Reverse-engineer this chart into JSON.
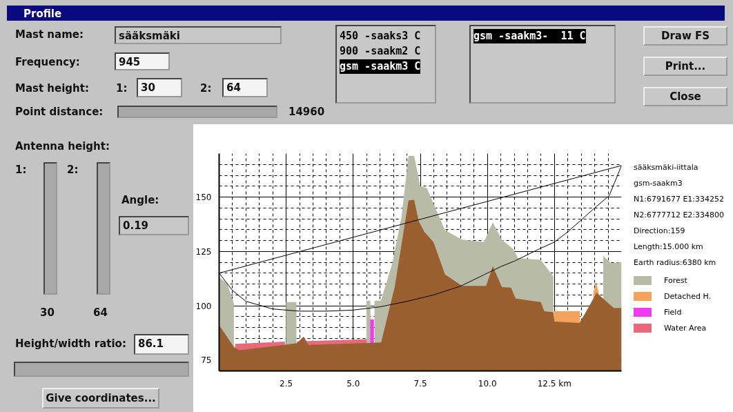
{
  "chart_data": {
    "type": "area",
    "title": "Profile",
    "xlim": [
      0,
      15
    ],
    "ylim": [
      70,
      170
    ],
    "xticks": [
      {
        "value": 2.5,
        "label": "2.5"
      },
      {
        "value": 5,
        "label": "5.0"
      },
      {
        "value": 7.5,
        "label": "7.5"
      },
      {
        "value": 10,
        "label": "10.0"
      },
      {
        "value": 12.5,
        "label": "12.5 km"
      }
    ],
    "yticks": [
      75,
      100,
      125,
      150
    ],
    "grid": true,
    "legend": "right",
    "series": [
      {
        "name": "Forest",
        "color": "#b8bca6",
        "x": [
          0,
          0.3,
          0.55,
          0.56,
          2.48,
          2.49,
          2.88,
          2.89,
          5.48,
          5.49,
          5.64,
          5.65,
          5.78,
          5.79,
          6.03,
          6.46,
          6.8,
          7.06,
          7.27,
          7.5,
          7.74,
          8.42,
          9.06,
          9.87,
          10.2,
          10.54,
          10.96,
          11.14,
          11.99,
          12.46,
          12.48,
          14.3,
          14.32,
          14.6,
          15
        ],
        "values": [
          113,
          110.2,
          101,
          null,
          null,
          101.7,
          101.7,
          null,
          null,
          102.3,
          102.3,
          null,
          null,
          102.3,
          102.3,
          119.7,
          141,
          169,
          169,
          155,
          154.2,
          134.7,
          130.4,
          129.3,
          138.3,
          130.4,
          126.1,
          121.9,
          121.1,
          113.4,
          null,
          null,
          122.9,
          119.7,
          120
        ]
      },
      {
        "name": "Detached H.",
        "color": "#f5a35c",
        "x": [
          12.48,
          13.45,
          13.7,
          13.95,
          14.05,
          14.15
        ],
        "values": [
          97.5,
          97.5,
          null,
          106,
          110.8,
          106
        ]
      },
      {
        "name": "Field",
        "color": "#f03cf0",
        "x": [
          5.63,
          5.77
        ],
        "values": [
          93.7,
          93.7
        ]
      },
      {
        "name": "Water Area",
        "color": "#e86a7a",
        "x": [
          0.6,
          2.45,
          2.7,
          2.9,
          5.5
        ],
        "values": [
          82.5,
          83.5,
          null,
          83.6,
          84.6
        ]
      },
      {
        "color": "#9a5f2e",
        "x": [
          0,
          0.55,
          0.75,
          2.47,
          2.9,
          3.15,
          3.33,
          6.04,
          6.55,
          7.06,
          7.27,
          7.44,
          7.65,
          7.99,
          8.42,
          9.06,
          9.95,
          10.2,
          10.54,
          10.88,
          11.05,
          11.99,
          12.12,
          12.46,
          12.5,
          13.43,
          13.69,
          14.07,
          14.46,
          14.71,
          15
        ],
        "values": [
          91,
          81,
          79.5,
          82.1,
          82.8,
          85.8,
          82,
          83.1,
          109,
          148.4,
          148.7,
          138.9,
          134,
          129.3,
          114.4,
          109.1,
          109.1,
          118.2,
          108.6,
          108.3,
          103.3,
          101.7,
          97.5,
          97,
          92.7,
          92.1,
          97.5,
          106,
          101.7,
          99,
          99
        ]
      },
      {
        "type": "line",
        "color": "#000000",
        "x": [
          0,
          15
        ],
        "values": [
          115,
          164.5
        ]
      },
      {
        "type": "line",
        "color": "#000000",
        "x": [
          0,
          0.5,
          1,
          2,
          3,
          4,
          5,
          6,
          7,
          8,
          9,
          10,
          10.5,
          11,
          12,
          12.5,
          13,
          14,
          14.54,
          15
        ],
        "values": [
          115,
          107,
          102,
          98.5,
          97.5,
          97.5,
          98,
          99.5,
          102,
          105,
          109,
          115,
          118,
          120.5,
          126.5,
          129.3,
          134,
          145,
          150.6,
          164.5
        ]
      }
    ],
    "annotations": [
      "Mast name:",
      "sääksmäki",
      "Frequency:",
      "945",
      "Mast height:",
      "1:",
      "30",
      "2:",
      "64",
      "Point distance:",
      "14960",
      "450 -saaks3 C",
      "900 -saakm2 C",
      "gsm -saakm3 C",
      "gsm -saakm3-  11 C",
      "Draw FS",
      "Print...",
      "Close",
      "Antenna height:",
      "1:",
      "2:",
      "Angle:",
      "0.19",
      "30",
      "64",
      "Height/width ratio:",
      "86.1",
      "Give coordinates...",
      "sääksmäki-iittala",
      "gsm-saakm3",
      "N1:6791677 E1:334252",
      "N2:6777712 E2:334800",
      "Direction:159",
      "Length:15.000 km",
      "Earth radius:6380 km"
    ]
  }
}
